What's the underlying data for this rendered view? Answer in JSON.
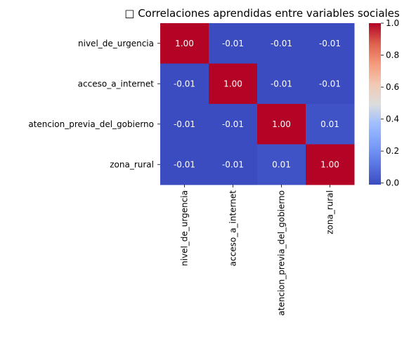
{
  "chart_data": {
    "type": "heatmap",
    "title": "□ Correlaciones aprendidas entre variables sociales",
    "rows": [
      "nivel_de_urgencia",
      "acceso_a_internet",
      "atencion_previa_del_gobierno",
      "zona_rural"
    ],
    "columns": [
      "nivel_de_urgencia",
      "acceso_a_internet",
      "atencion_previa_del_gobierno",
      "zona_rural"
    ],
    "values": [
      [
        1.0,
        -0.01,
        -0.01,
        -0.01
      ],
      [
        -0.01,
        1.0,
        -0.01,
        -0.01
      ],
      [
        -0.01,
        -0.01,
        1.0,
        0.01
      ],
      [
        -0.01,
        -0.01,
        0.01,
        1.0
      ]
    ],
    "cell_labels": [
      [
        "1.00",
        "-0.01",
        "-0.01",
        "-0.01"
      ],
      [
        "-0.01",
        "1.00",
        "-0.01",
        "-0.01"
      ],
      [
        "-0.01",
        "-0.01",
        "1.00",
        "0.01"
      ],
      [
        "-0.01",
        "-0.01",
        "0.01",
        "1.00"
      ]
    ],
    "colormap": "coolwarm",
    "colorbar": {
      "range": [
        -0.01,
        1.0
      ],
      "ticks": [
        0.0,
        0.2,
        0.4,
        0.6,
        0.8,
        1.0
      ],
      "tick_labels": [
        "0.0",
        "0.2",
        "0.4",
        "0.6",
        "0.8",
        "1.0"
      ]
    }
  }
}
